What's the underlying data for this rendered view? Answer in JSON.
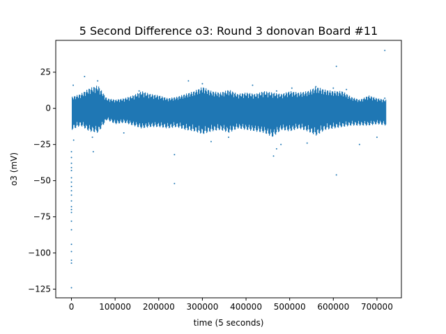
{
  "chart_data": {
    "type": "scatter",
    "title": "5 Second Difference o3: Round 3 donovan Board #11",
    "xlabel": "time (5 seconds)",
    "ylabel": "o3 (mV)",
    "xlim": [
      -36000,
      756000
    ],
    "ylim": [
      -131,
      47
    ],
    "xticks": [
      0,
      100000,
      200000,
      300000,
      400000,
      500000,
      600000,
      700000
    ],
    "xtick_labels": [
      "0",
      "100000",
      "200000",
      "300000",
      "400000",
      "500000",
      "600000",
      "700000"
    ],
    "yticks": [
      25,
      0,
      -25,
      -50,
      -75,
      -100,
      -125
    ],
    "ytick_labels": [
      "25",
      "0",
      "−25",
      "−50",
      "−75",
      "−100",
      "−125"
    ],
    "grid": false,
    "legend": "none",
    "marker_color": "#1f77b4",
    "series": [
      {
        "band": {
          "x": [
            0,
            20000,
            40000,
            60000,
            80000,
            100000,
            120000,
            140000,
            160000,
            180000,
            200000,
            220000,
            240000,
            260000,
            280000,
            300000,
            320000,
            340000,
            360000,
            380000,
            400000,
            420000,
            440000,
            460000,
            480000,
            500000,
            520000,
            540000,
            560000,
            580000,
            600000,
            620000,
            640000,
            660000,
            680000,
            700000,
            720000
          ],
          "upper": [
            8,
            10,
            14,
            16,
            7,
            6,
            7,
            9,
            12,
            10,
            9,
            7,
            8,
            10,
            12,
            15,
            12,
            11,
            13,
            10,
            11,
            10,
            12,
            11,
            10,
            12,
            11,
            12,
            15,
            13,
            12,
            12,
            8,
            6,
            9,
            7,
            6
          ],
          "lower": [
            -15,
            -12,
            -16,
            -17,
            -8,
            -11,
            -10,
            -12,
            -14,
            -13,
            -13,
            -14,
            -13,
            -15,
            -16,
            -18,
            -16,
            -15,
            -17,
            -14,
            -15,
            -16,
            -17,
            -20,
            -15,
            -16,
            -14,
            -16,
            -19,
            -15,
            -14,
            -13,
            -12,
            -12,
            -12,
            -11,
            -12
          ]
        },
        "outliers": [
          [
            0,
            -30
          ],
          [
            0,
            -34
          ],
          [
            0,
            -38
          ],
          [
            0,
            -41
          ],
          [
            0,
            -43
          ],
          [
            0,
            -48
          ],
          [
            0,
            -51
          ],
          [
            0,
            -54
          ],
          [
            0,
            -57
          ],
          [
            0,
            -60
          ],
          [
            0,
            -64
          ],
          [
            0,
            -68
          ],
          [
            0,
            -70
          ],
          [
            0,
            -72
          ],
          [
            0,
            -78
          ],
          [
            0,
            -84
          ],
          [
            0,
            -94
          ],
          [
            0,
            -99
          ],
          [
            0,
            -105
          ],
          [
            0,
            -107
          ],
          [
            0,
            -124
          ],
          [
            4000,
            16
          ],
          [
            5000,
            -22
          ],
          [
            30000,
            22
          ],
          [
            50000,
            -30
          ],
          [
            60000,
            19
          ],
          [
            48000,
            -20
          ],
          [
            120000,
            -17
          ],
          [
            155000,
            12
          ],
          [
            236000,
            -32
          ],
          [
            236000,
            -52
          ],
          [
            268000,
            19
          ],
          [
            300000,
            17
          ],
          [
            320000,
            -23
          ],
          [
            360000,
            -20
          ],
          [
            370000,
            10
          ],
          [
            415000,
            16
          ],
          [
            470000,
            12
          ],
          [
            463000,
            -33
          ],
          [
            470000,
            -28
          ],
          [
            480000,
            -25
          ],
          [
            505000,
            14
          ],
          [
            540000,
            -24
          ],
          [
            560000,
            15
          ],
          [
            600000,
            14
          ],
          [
            607000,
            29
          ],
          [
            607000,
            -46
          ],
          [
            630000,
            13
          ],
          [
            660000,
            -25
          ],
          [
            700000,
            -20
          ],
          [
            718000,
            40
          ],
          [
            718000,
            7
          ]
        ]
      }
    ]
  }
}
